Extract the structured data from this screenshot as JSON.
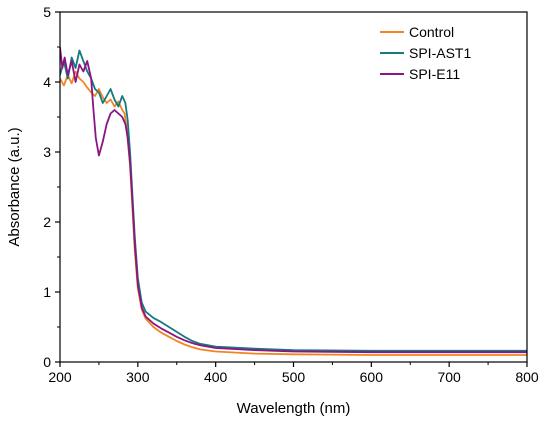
{
  "chart_data": {
    "type": "line",
    "title": "",
    "xlabel": "Wavelength (nm)",
    "ylabel": "Absorbance (a.u.)",
    "xlim": [
      200,
      800
    ],
    "ylim": [
      0,
      5
    ],
    "xticks": [
      "200",
      "300",
      "400",
      "500",
      "600",
      "700",
      "800"
    ],
    "yticks": [
      "0",
      "1",
      "2",
      "3",
      "4",
      "5"
    ],
    "grid": false,
    "legend_position": "top-right",
    "series": [
      {
        "name": "Control",
        "color": "#F28522",
        "points": [
          [
            200,
            4.05
          ],
          [
            205,
            3.95
          ],
          [
            210,
            4.1
          ],
          [
            215,
            3.98
          ],
          [
            220,
            4.15
          ],
          [
            225,
            4.05
          ],
          [
            230,
            4.0
          ],
          [
            235,
            3.92
          ],
          [
            240,
            3.85
          ],
          [
            245,
            3.8
          ],
          [
            250,
            3.9
          ],
          [
            255,
            3.78
          ],
          [
            260,
            3.7
          ],
          [
            265,
            3.75
          ],
          [
            270,
            3.65
          ],
          [
            275,
            3.72
          ],
          [
            280,
            3.6
          ],
          [
            283,
            3.55
          ],
          [
            286,
            3.3
          ],
          [
            290,
            2.8
          ],
          [
            293,
            2.2
          ],
          [
            296,
            1.6
          ],
          [
            300,
            1.05
          ],
          [
            305,
            0.75
          ],
          [
            310,
            0.62
          ],
          [
            320,
            0.5
          ],
          [
            330,
            0.42
          ],
          [
            340,
            0.36
          ],
          [
            350,
            0.3
          ],
          [
            360,
            0.25
          ],
          [
            370,
            0.21
          ],
          [
            380,
            0.18
          ],
          [
            400,
            0.15
          ],
          [
            450,
            0.12
          ],
          [
            500,
            0.11
          ],
          [
            600,
            0.1
          ],
          [
            700,
            0.1
          ],
          [
            800,
            0.1
          ]
        ]
      },
      {
        "name": "SPI-AST1",
        "color": "#167A7E",
        "points": [
          [
            200,
            4.1
          ],
          [
            205,
            4.3
          ],
          [
            210,
            4.05
          ],
          [
            215,
            4.35
          ],
          [
            220,
            4.2
          ],
          [
            225,
            4.45
          ],
          [
            230,
            4.3
          ],
          [
            235,
            4.15
          ],
          [
            240,
            4.05
          ],
          [
            245,
            3.9
          ],
          [
            250,
            3.85
          ],
          [
            255,
            3.7
          ],
          [
            260,
            3.8
          ],
          [
            265,
            3.9
          ],
          [
            270,
            3.75
          ],
          [
            275,
            3.65
          ],
          [
            280,
            3.8
          ],
          [
            284,
            3.7
          ],
          [
            287,
            3.45
          ],
          [
            290,
            3.0
          ],
          [
            293,
            2.4
          ],
          [
            296,
            1.8
          ],
          [
            300,
            1.2
          ],
          [
            305,
            0.85
          ],
          [
            310,
            0.72
          ],
          [
            320,
            0.63
          ],
          [
            330,
            0.57
          ],
          [
            340,
            0.5
          ],
          [
            350,
            0.43
          ],
          [
            360,
            0.36
          ],
          [
            370,
            0.3
          ],
          [
            380,
            0.26
          ],
          [
            400,
            0.22
          ],
          [
            450,
            0.19
          ],
          [
            500,
            0.17
          ],
          [
            600,
            0.16
          ],
          [
            700,
            0.16
          ],
          [
            800,
            0.16
          ]
        ]
      },
      {
        "name": "SPI-E11",
        "color": "#8A1583",
        "points": [
          [
            200,
            4.5
          ],
          [
            203,
            4.2
          ],
          [
            206,
            4.35
          ],
          [
            210,
            4.1
          ],
          [
            215,
            4.3
          ],
          [
            220,
            4.0
          ],
          [
            225,
            4.25
          ],
          [
            230,
            4.15
          ],
          [
            235,
            4.3
          ],
          [
            240,
            4.05
          ],
          [
            243,
            3.6
          ],
          [
            246,
            3.2
          ],
          [
            250,
            2.95
          ],
          [
            255,
            3.15
          ],
          [
            260,
            3.4
          ],
          [
            265,
            3.55
          ],
          [
            270,
            3.6
          ],
          [
            275,
            3.55
          ],
          [
            280,
            3.5
          ],
          [
            284,
            3.4
          ],
          [
            287,
            3.2
          ],
          [
            290,
            2.85
          ],
          [
            293,
            2.3
          ],
          [
            296,
            1.7
          ],
          [
            300,
            1.1
          ],
          [
            305,
            0.78
          ],
          [
            310,
            0.65
          ],
          [
            320,
            0.55
          ],
          [
            330,
            0.48
          ],
          [
            340,
            0.42
          ],
          [
            350,
            0.36
          ],
          [
            360,
            0.31
          ],
          [
            370,
            0.27
          ],
          [
            380,
            0.24
          ],
          [
            400,
            0.2
          ],
          [
            450,
            0.17
          ],
          [
            500,
            0.15
          ],
          [
            600,
            0.14
          ],
          [
            700,
            0.14
          ],
          [
            800,
            0.14
          ]
        ]
      }
    ]
  }
}
